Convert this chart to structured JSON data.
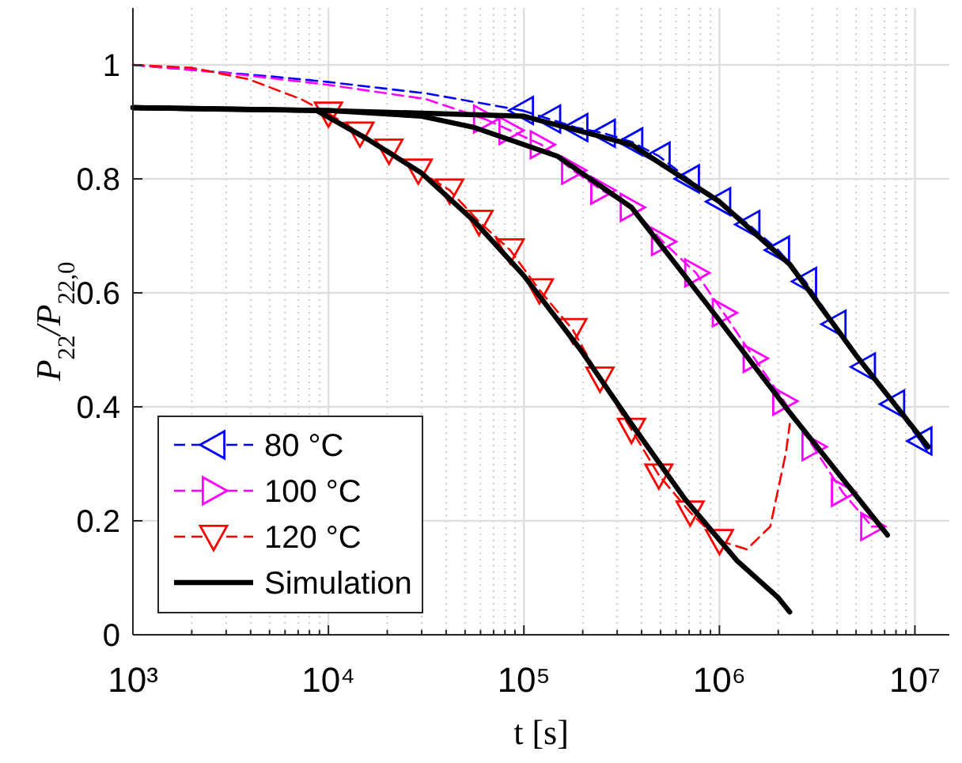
{
  "chart_data": {
    "type": "line",
    "xlabel": "t [s]",
    "ylabel": "P$_{22}$/P$_{22,0}$",
    "log": "x",
    "grid": true,
    "legend": "bottom left",
    "xlim": [
      1000,
      15000000
    ],
    "ylim": [
      0,
      1.1
    ],
    "xticks": [
      {
        "value": 1000,
        "label": "10³"
      },
      {
        "value": 10000,
        "label": "10⁴"
      },
      {
        "value": 100000,
        "label": "10⁵"
      },
      {
        "value": 1000000,
        "label": "10⁶"
      },
      {
        "value": 10000000,
        "label": "10⁷"
      }
    ],
    "yticks": [
      0,
      0.2,
      0.4,
      0.6,
      0.8,
      1
    ],
    "series": [
      {
        "color": "#0000ff",
        "line_style": "dashed",
        "marker": "none",
        "x": [
          1000,
          5000,
          10000,
          31600,
          98000
        ],
        "values": [
          1.0,
          0.98,
          0.97,
          0.95,
          0.92
        ]
      },
      {
        "name": "80 °C",
        "color": "#0000ff",
        "line_style": "dashed",
        "marker": "triangle-left",
        "x": [
          98000,
          135000,
          186000,
          257000,
          355000,
          490000,
          692000,
          1000000,
          1410000,
          2000000,
          2750000,
          3890000,
          5500000,
          7760000,
          10700000
        ],
        "values": [
          0.92,
          0.905,
          0.89,
          0.88,
          0.865,
          0.84,
          0.8,
          0.76,
          0.72,
          0.675,
          0.62,
          0.545,
          0.47,
          0.405,
          0.34
        ]
      },
      {
        "color": "#0000ff",
        "line_style": "dashed",
        "marker": "none",
        "x": [
          10700000,
          11700000
        ],
        "values": [
          0.34,
          0.32
        ]
      },
      {
        "color": "#ff00ff",
        "line_style": "dashed",
        "marker": "none",
        "x": [
          1000,
          3160,
          10000,
          31600,
          63100
        ],
        "values": [
          1.0,
          0.985,
          0.965,
          0.94,
          0.905
        ]
      },
      {
        "name": "100 °C",
        "color": "#ff00ff",
        "line_style": "dashed",
        "marker": "triangle-right",
        "x": [
          63100,
          85100,
          123000,
          178000,
          251000,
          355000,
          513000,
          759000,
          1050000,
          1510000,
          2140000,
          3020000,
          4270000,
          6030000
        ],
        "values": [
          0.905,
          0.885,
          0.86,
          0.815,
          0.78,
          0.75,
          0.69,
          0.635,
          0.565,
          0.485,
          0.41,
          0.33,
          0.25,
          0.19
        ]
      },
      {
        "color": "#ff00ff",
        "line_style": "dashed",
        "marker": "none",
        "x": [
          6030000,
          6610000
        ],
        "values": [
          0.19,
          0.19
        ]
      },
      {
        "color": "#ff0000",
        "line_style": "dashed",
        "marker": "none",
        "x": [
          1000,
          2000,
          3890,
          7240,
          10000
        ],
        "values": [
          1.0,
          0.995,
          0.975,
          0.94,
          0.915
        ]
      },
      {
        "name": "120 °C",
        "color": "#ff0000",
        "line_style": "dashed",
        "marker": "triangle-down",
        "x": [
          10000,
          14500,
          20400,
          28800,
          41700,
          58900,
          85100,
          120000,
          178000,
          245000,
          355000,
          490000,
          708000,
          1000000
        ],
        "values": [
          0.915,
          0.88,
          0.85,
          0.815,
          0.78,
          0.725,
          0.675,
          0.605,
          0.535,
          0.45,
          0.36,
          0.28,
          0.215,
          0.165
        ]
      },
      {
        "color": "#ff0000",
        "line_style": "dashed",
        "marker": "none",
        "x": [
          1000000,
          1380000,
          1820000,
          2190000,
          2290000
        ],
        "values": [
          0.165,
          0.15,
          0.19,
          0.32,
          0.37
        ]
      },
      {
        "name": "Simulation",
        "color": "#000000",
        "line_style": "solid",
        "marker": "none",
        "x": [
          1000,
          10000,
          100000,
          355000,
          1000000,
          2290000,
          5010000,
          11700000
        ],
        "values": [
          0.925,
          0.92,
          0.91,
          0.86,
          0.76,
          0.65,
          0.49,
          0.33
        ]
      },
      {
        "color": "#000000",
        "line_style": "solid",
        "marker": "none",
        "x": [
          1000,
          10000,
          30000,
          56000,
          148000,
          355000,
          910000,
          2290000,
          7240000
        ],
        "values": [
          0.925,
          0.92,
          0.91,
          0.89,
          0.84,
          0.75,
          0.57,
          0.39,
          0.175
        ]
      },
      {
        "color": "#000000",
        "line_style": "solid",
        "marker": "none",
        "x": [
          1000,
          3000,
          8700,
          15800,
          30000,
          56000,
          100000,
          195000,
          355000,
          660000,
          1230000,
          2000000,
          2290000
        ],
        "values": [
          0.925,
          0.922,
          0.92,
          0.87,
          0.81,
          0.725,
          0.63,
          0.5,
          0.37,
          0.24,
          0.13,
          0.065,
          0.04
        ]
      }
    ]
  }
}
